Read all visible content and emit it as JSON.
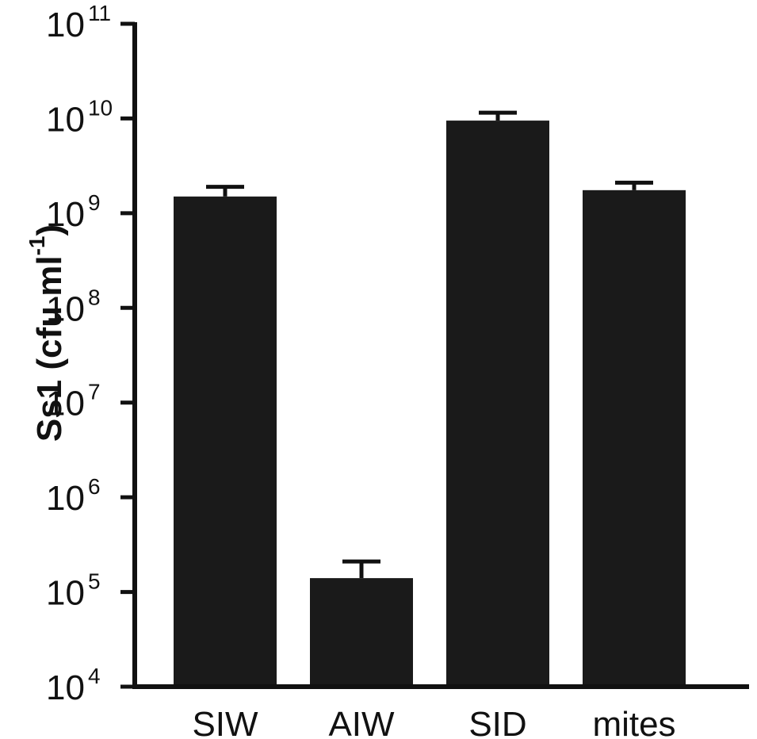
{
  "chart_data": {
    "type": "bar",
    "y_scale": "log",
    "ylim": [
      10000,
      100000000000
    ],
    "y_ticks": [
      {
        "value": 10000,
        "base": "10",
        "exp": "4"
      },
      {
        "value": 100000,
        "base": "10",
        "exp": "5"
      },
      {
        "value": 1000000,
        "base": "10",
        "exp": "6"
      },
      {
        "value": 10000000,
        "base": "10",
        "exp": "7"
      },
      {
        "value": 100000000,
        "base": "10",
        "exp": "8"
      },
      {
        "value": 1000000000,
        "base": "10",
        "exp": "9"
      },
      {
        "value": 10000000000,
        "base": "10",
        "exp": "10"
      },
      {
        "value": 100000000000,
        "base": "10",
        "exp": "11"
      }
    ],
    "ylabel": "Ss1 (cfu ml",
    "ylabel_sup": "-1",
    "ylabel_close": ")",
    "xlabel": "",
    "title": "",
    "categories": [
      "SIW",
      "AIW",
      "SID",
      "mites"
    ],
    "values": [
      1500000000,
      140000,
      9500000000,
      1750000000
    ],
    "error_upper": [
      1900000000,
      210000,
      11500000000,
      2100000000
    ],
    "bar_color": "#1a1a1a",
    "grid": false
  }
}
